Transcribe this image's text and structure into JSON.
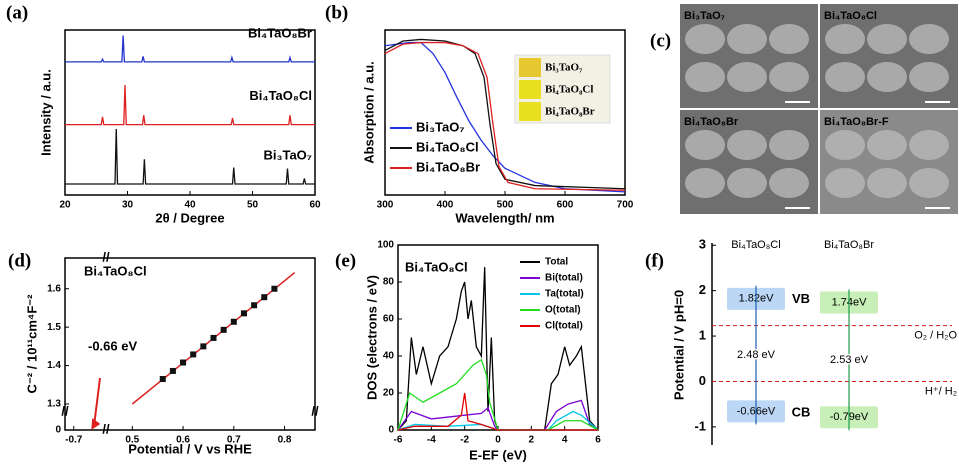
{
  "chart_data": [
    {
      "type": "line",
      "panel_label": "(a)",
      "xlabel": "2θ / Degree",
      "ylabel": "Intensity / a.u.",
      "xlim": [
        20,
        60
      ],
      "xticks": [
        20,
        30,
        40,
        50,
        60
      ],
      "ylim": [
        0,
        3
      ],
      "series": [
        {
          "name": "Bi₄TaO₈Br",
          "color": "#2233cc",
          "x": [
            20,
            25.8,
            26,
            26.2,
            29.1,
            29.3,
            29.5,
            32.3,
            32.5,
            32.7,
            46.5,
            46.7,
            46.9,
            55.8,
            56,
            56.2,
            60
          ],
          "values": [
            2.42,
            2.42,
            2.47,
            2.42,
            2.42,
            2.9,
            2.42,
            2.42,
            2.52,
            2.42,
            2.42,
            2.5,
            2.42,
            2.42,
            2.5,
            2.42,
            2.42
          ]
        },
        {
          "name": "Bi₄TaO₈Cl",
          "color": "#e02020",
          "x": [
            20,
            25.8,
            26,
            26.2,
            29.4,
            29.6,
            29.8,
            32.4,
            32.6,
            32.8,
            46.6,
            46.8,
            47,
            55.8,
            56,
            56.2,
            60
          ],
          "values": [
            1.28,
            1.28,
            1.42,
            1.28,
            1.28,
            2.0,
            1.28,
            1.28,
            1.45,
            1.28,
            1.28,
            1.4,
            1.28,
            1.28,
            1.45,
            1.28,
            1.28
          ]
        },
        {
          "name": "Bi₃TaO₇",
          "color": "#111111",
          "x": [
            20,
            28,
            28.2,
            28.4,
            32.5,
            32.7,
            32.9,
            46.8,
            47,
            47.2,
            55.4,
            55.6,
            55.8,
            58.1,
            58.3,
            58.5,
            60
          ],
          "values": [
            0.2,
            0.2,
            1.2,
            0.2,
            0.2,
            0.65,
            0.2,
            0.2,
            0.5,
            0.2,
            0.2,
            0.48,
            0.2,
            0.2,
            0.3,
            0.2,
            0.2
          ]
        }
      ]
    },
    {
      "type": "line",
      "panel_label": "(b)",
      "xlabel": "Wavelength/ nm",
      "ylabel": "Absorption / a.u.",
      "xlim": [
        300,
        700
      ],
      "xticks": [
        300,
        400,
        500,
        600,
        700
      ],
      "ylim": [
        0,
        1.05
      ],
      "inset_labels": [
        "Bi₃TaO₇",
        "Bi₄TaO₈Cl",
        "Bi₄TaO₈Br"
      ],
      "series": [
        {
          "name": "Bi₃TaO₇",
          "color": "#2233dd",
          "x": [
            300,
            340,
            360,
            380,
            400,
            420,
            440,
            460,
            480,
            500,
            550,
            600,
            700
          ],
          "values": [
            0.95,
            0.97,
            0.97,
            0.9,
            0.78,
            0.62,
            0.47,
            0.35,
            0.25,
            0.17,
            0.08,
            0.04,
            0.02
          ]
        },
        {
          "name": "Bi₄TaO₈Cl",
          "color": "#111111",
          "x": [
            300,
            330,
            360,
            400,
            430,
            450,
            465,
            475,
            485,
            500,
            550,
            700
          ],
          "values": [
            0.92,
            0.98,
            0.99,
            0.98,
            0.95,
            0.9,
            0.75,
            0.45,
            0.2,
            0.1,
            0.06,
            0.04
          ]
        },
        {
          "name": "Bi₄TaO₈Br",
          "color": "#dd2020",
          "x": [
            300,
            330,
            360,
            400,
            430,
            455,
            470,
            480,
            490,
            505,
            550,
            700
          ],
          "values": [
            0.9,
            0.96,
            0.97,
            0.97,
            0.95,
            0.9,
            0.75,
            0.45,
            0.18,
            0.08,
            0.04,
            0.03
          ]
        }
      ]
    },
    {
      "type": "images",
      "panel_label": "(c)",
      "labels": [
        "Bi₃TaO₇",
        "Bi₄TaO₈Cl",
        "Bi₄TaO₈Br",
        "Bi₄TaO₈Br-F"
      ]
    },
    {
      "type": "scatter",
      "panel_label": "(d)",
      "title": "Bi₄TaO₈Cl",
      "xlabel": "Potential / V vs RHE",
      "ylabel": "C⁻² / 10¹¹cm⁴F⁻²",
      "annotation": "-0.66 eV",
      "intercept": -0.66,
      "xlim": [
        -0.72,
        0.86
      ],
      "x_axis_break": [
        -0.64,
        0.46
      ],
      "xticks": [
        -0.7,
        0.5,
        0.6,
        0.7,
        0.8
      ],
      "ylim": [
        0,
        1.68
      ],
      "y_axis_break": [
        0.03,
        1.3
      ],
      "yticks": [
        0,
        1.3,
        1.4,
        1.5,
        1.6
      ],
      "x": [
        0.56,
        0.58,
        0.6,
        0.62,
        0.64,
        0.66,
        0.68,
        0.7,
        0.72,
        0.74,
        0.76,
        0.78
      ],
      "values": [
        1.365,
        1.386,
        1.408,
        1.429,
        1.45,
        1.472,
        1.493,
        1.514,
        1.536,
        1.557,
        1.578,
        1.6
      ],
      "color": "#111111",
      "fit": {
        "color": "#dd2020",
        "x": [
          0.5,
          0.82
        ],
        "values": [
          1.3,
          1.642
        ]
      }
    },
    {
      "type": "line",
      "panel_label": "(e)",
      "title": "Bi₄TaO₈Cl",
      "xlabel": "E-EF (eV)",
      "ylabel": "DOS (electrons / eV)",
      "xlim": [
        -6,
        6
      ],
      "xticks": [
        -6,
        -4,
        -2,
        0,
        2,
        4,
        6
      ],
      "ylim": [
        0,
        100
      ],
      "yticks": [
        0,
        20,
        40,
        60,
        80,
        100
      ],
      "series": [
        {
          "name": "Total",
          "color": "#000000",
          "x": [
            -6,
            -5.5,
            -5.2,
            -4.9,
            -4.5,
            -4,
            -3.5,
            -3,
            -2.5,
            -2.2,
            -2,
            -1.8,
            -1.6,
            -1.3,
            -1,
            -0.8,
            -0.6,
            -0.4,
            -0.2,
            0,
            2.8,
            3.2,
            3.6,
            4,
            4.3,
            4.7,
            5,
            5.5,
            6
          ],
          "values": [
            0,
            5,
            50,
            30,
            45,
            25,
            40,
            45,
            60,
            75,
            80,
            60,
            70,
            45,
            40,
            88,
            10,
            50,
            5,
            0,
            0,
            25,
            30,
            45,
            35,
            40,
            45,
            5,
            0
          ]
        },
        {
          "name": "Bi(total)",
          "color": "#7a00d4",
          "x": [
            -6,
            -5.2,
            -4,
            -3,
            -2,
            -1,
            -0.6,
            -0.2,
            0,
            2.8,
            3.5,
            4.2,
            5,
            5.5,
            6
          ],
          "values": [
            0,
            10,
            6,
            7,
            8,
            9,
            12,
            2,
            0,
            0,
            10,
            14,
            16,
            3,
            0
          ]
        },
        {
          "name": "Ta(total)",
          "color": "#00c8e6",
          "x": [
            -6,
            -5,
            -3,
            -1,
            0,
            3,
            3.5,
            4.5,
            5,
            6
          ],
          "values": [
            0,
            3,
            2,
            3,
            0,
            0,
            5,
            10,
            8,
            0
          ]
        },
        {
          "name": "O(total)",
          "color": "#22dd22",
          "x": [
            -6,
            -5.3,
            -4.5,
            -3.5,
            -2.5,
            -1.5,
            -1,
            -0.7,
            -0.5,
            0,
            3,
            4,
            5,
            6
          ],
          "values": [
            0,
            20,
            15,
            20,
            25,
            35,
            38,
            30,
            15,
            0,
            0,
            5,
            5,
            0
          ]
        },
        {
          "name": "Cl(total)",
          "color": "#e00000",
          "x": [
            -6,
            -5,
            -3,
            -2.2,
            -2,
            -1.8,
            -1,
            0,
            6
          ],
          "values": [
            0,
            2,
            2,
            8,
            20,
            5,
            3,
            0,
            0
          ]
        }
      ]
    },
    {
      "type": "band_diagram",
      "panel_label": "(f)",
      "ylabel": "Potential / V pH=0",
      "ylim": [
        -1.4,
        3.05
      ],
      "yticks": [
        -1,
        0,
        1,
        2,
        3
      ],
      "levels": [
        {
          "value": 0,
          "label": "H⁺/ H₂"
        },
        {
          "value": 1.23,
          "label": "O₂ / H₂O"
        }
      ],
      "band_labels": [
        "CB",
        "VB"
      ],
      "materials": [
        {
          "name": "Bi₄TaO₈Cl",
          "color": "#bcd7f5",
          "text_color": "#1a5fb4",
          "cb": -0.66,
          "cb_label": "-0.66eV",
          "vb": 1.82,
          "vb_label": "1.82eV",
          "gap": 2.48,
          "gap_label": "2.48 eV"
        },
        {
          "name": "Bi₄TaO₈Br",
          "color": "#c8efb8",
          "text_color": "#1e9e4a",
          "cb": -0.79,
          "cb_label": "-0.79eV",
          "vb": 1.74,
          "vb_label": "1.74eV",
          "gap": 2.53,
          "gap_label": "2.53 eV"
        }
      ]
    }
  ]
}
